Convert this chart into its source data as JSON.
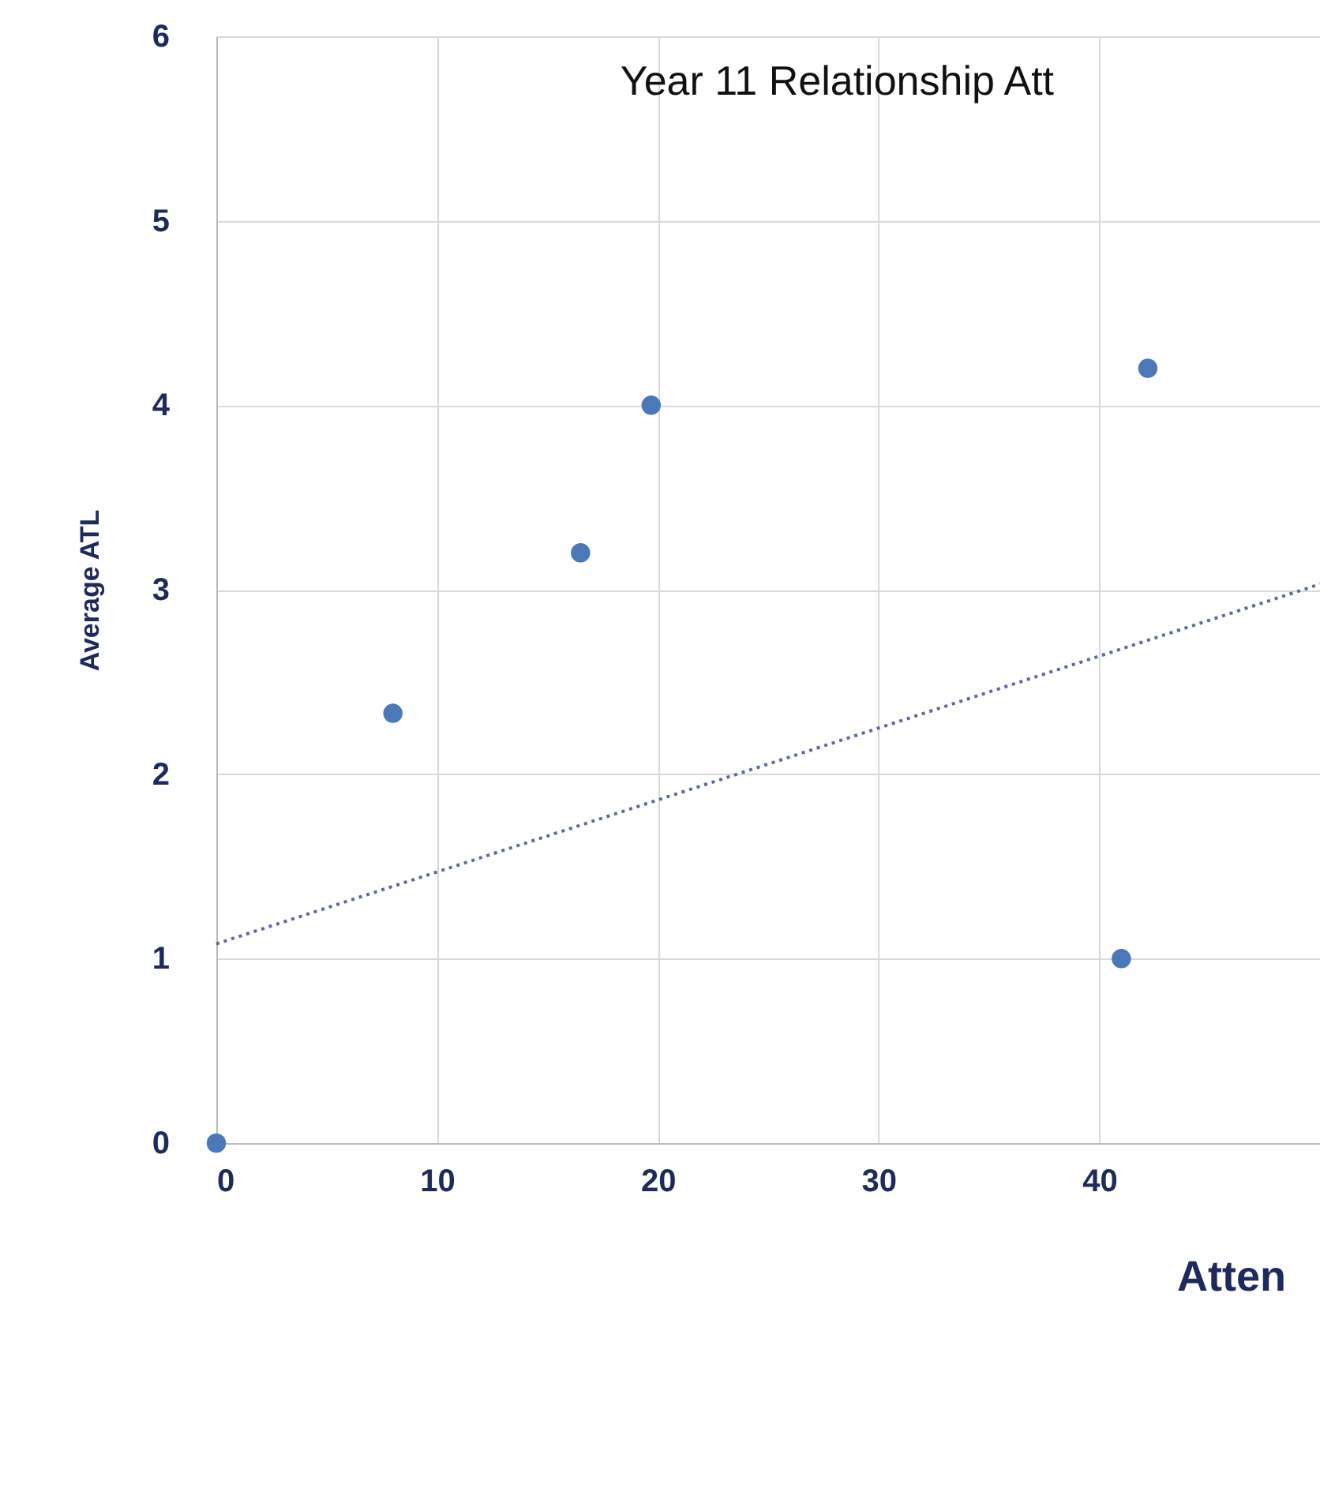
{
  "chart_data": {
    "type": "scatter",
    "title": "Year 11 Relationship Att",
    "xlabel": "Atten",
    "ylabel": "Average ATL",
    "series": [
      {
        "color": "#4a78b8",
        "marker": "circle",
        "x": [
          0,
          8,
          16.5,
          19.7,
          41,
          42.2
        ],
        "values": [
          0,
          2.33,
          3.2,
          4.0,
          1.0,
          4.2
        ]
      },
      {
        "type": "line",
        "color": "#5b6a9c",
        "line_style": "dotted",
        "x": [
          0,
          50
        ],
        "values": [
          1.08,
          3.03
        ]
      }
    ],
    "xlim": [
      0,
      50
    ],
    "xticks": [
      0,
      10,
      20,
      30,
      40
    ],
    "ylim": [
      0,
      6
    ],
    "yticks": [
      0,
      1,
      2,
      3,
      4,
      5,
      6
    ],
    "grid": true
  }
}
